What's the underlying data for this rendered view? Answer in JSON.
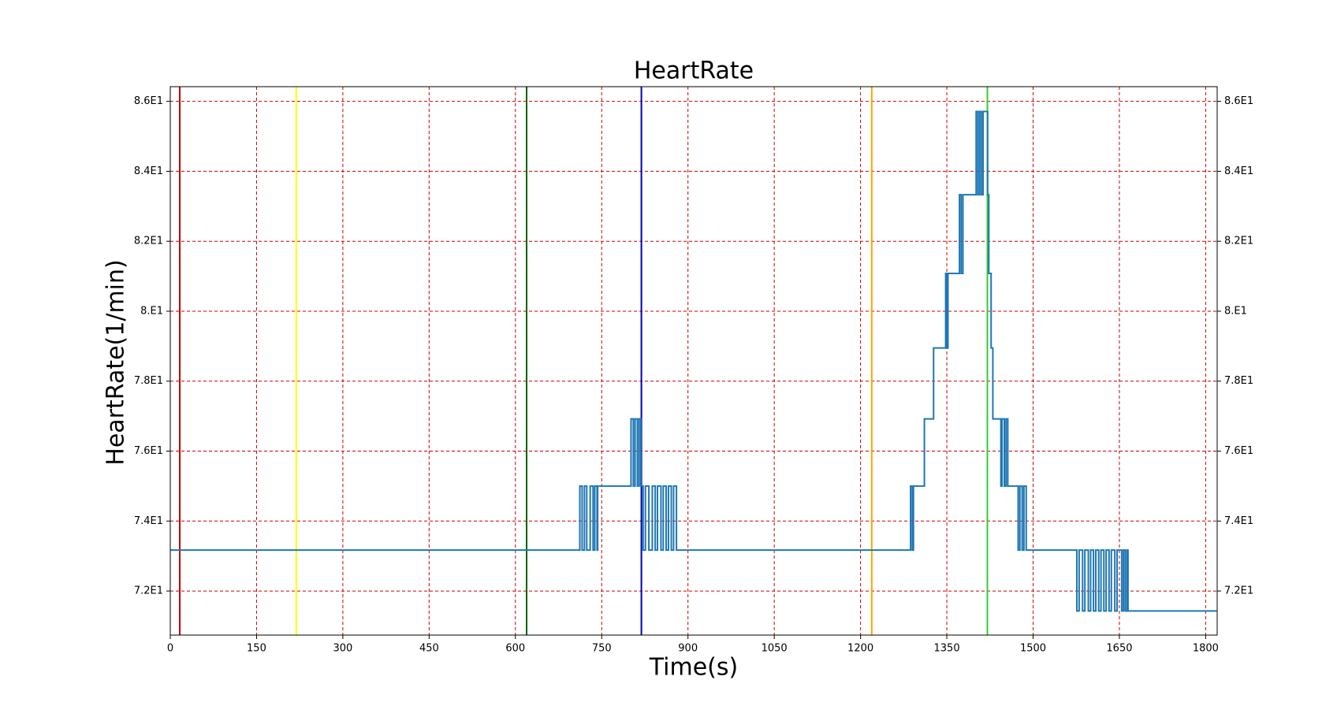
{
  "chart_data": {
    "type": "line",
    "title": "HeartRate",
    "xlabel": "Time(s)",
    "ylabel": "HeartRate(1/min)",
    "xlim": [
      0,
      1820
    ],
    "ylim": [
      70.74,
      86.42
    ],
    "xticks": [
      0,
      150,
      300,
      450,
      600,
      750,
      900,
      1050,
      1200,
      1350,
      1500,
      1650,
      1800
    ],
    "yticks": [
      {
        "value": 72,
        "label": "7.2E1"
      },
      {
        "value": 74,
        "label": "7.4E1"
      },
      {
        "value": 76,
        "label": "7.6E1"
      },
      {
        "value": 78,
        "label": "7.8E1"
      },
      {
        "value": 80,
        "label": "8.E1"
      },
      {
        "value": 82,
        "label": "8.2E1"
      },
      {
        "value": 84,
        "label": "8.4E1"
      },
      {
        "value": 86,
        "label": "8.6E1"
      }
    ],
    "grid": true,
    "grid_color": "#cc0000",
    "step": true,
    "vlines": [
      {
        "x": 16.5,
        "color": "#c00000"
      },
      {
        "x": 219,
        "color": "#ffff00"
      },
      {
        "x": 619.5,
        "color": "#006400"
      },
      {
        "x": 819,
        "color": "#0000b0"
      },
      {
        "x": 1219.5,
        "color": "#ffa500"
      },
      {
        "x": 1420.5,
        "color": "#32cd32"
      }
    ],
    "series": [
      {
        "color": "#1f77b4",
        "x": [
          0,
          712,
          716,
          720,
          724,
          730,
          735,
          738,
          742,
          743,
          801,
          805,
          808,
          812,
          815,
          818,
          822,
          826,
          832,
          838,
          843,
          847,
          853,
          857,
          862,
          866,
          871,
          875,
          880,
          1287,
          1290,
          1292,
          1311,
          1327,
          1348,
          1350,
          1352,
          1372,
          1375,
          1378,
          1401,
          1404,
          1407,
          1410,
          1413,
          1421,
          1423,
          1427,
          1430,
          1444,
          1446,
          1450,
          1453,
          1456,
          1474,
          1477,
          1481,
          1484,
          1488,
          1576,
          1580,
          1586,
          1590,
          1596,
          1600,
          1605,
          1609,
          1614,
          1618,
          1623,
          1627,
          1632,
          1636,
          1642,
          1646,
          1654,
          1657,
          1660,
          1663,
          1665,
          1819
        ],
        "values": [
          73.17,
          75,
          73.17,
          75,
          73.17,
          75,
          73.17,
          75,
          73.17,
          75,
          76.92,
          75,
          76.92,
          75,
          76.92,
          75,
          73.17,
          75,
          73.17,
          75,
          73.17,
          75,
          73.17,
          75,
          73.17,
          75,
          73.17,
          75,
          73.17,
          75,
          73.17,
          75,
          76.92,
          78.95,
          81.08,
          78.95,
          81.08,
          83.33,
          81.08,
          83.33,
          85.71,
          83.33,
          85.71,
          83.33,
          85.71,
          83.33,
          81.08,
          78.95,
          76.92,
          75,
          76.92,
          75,
          76.92,
          75,
          73.17,
          75,
          73.17,
          75,
          73.17,
          71.43,
          73.17,
          71.43,
          73.17,
          71.43,
          73.17,
          71.43,
          73.17,
          71.43,
          73.17,
          71.43,
          73.17,
          71.43,
          73.17,
          71.43,
          73.17,
          71.43,
          73.17,
          71.43,
          73.17,
          71.43,
          71.43
        ]
      }
    ]
  }
}
